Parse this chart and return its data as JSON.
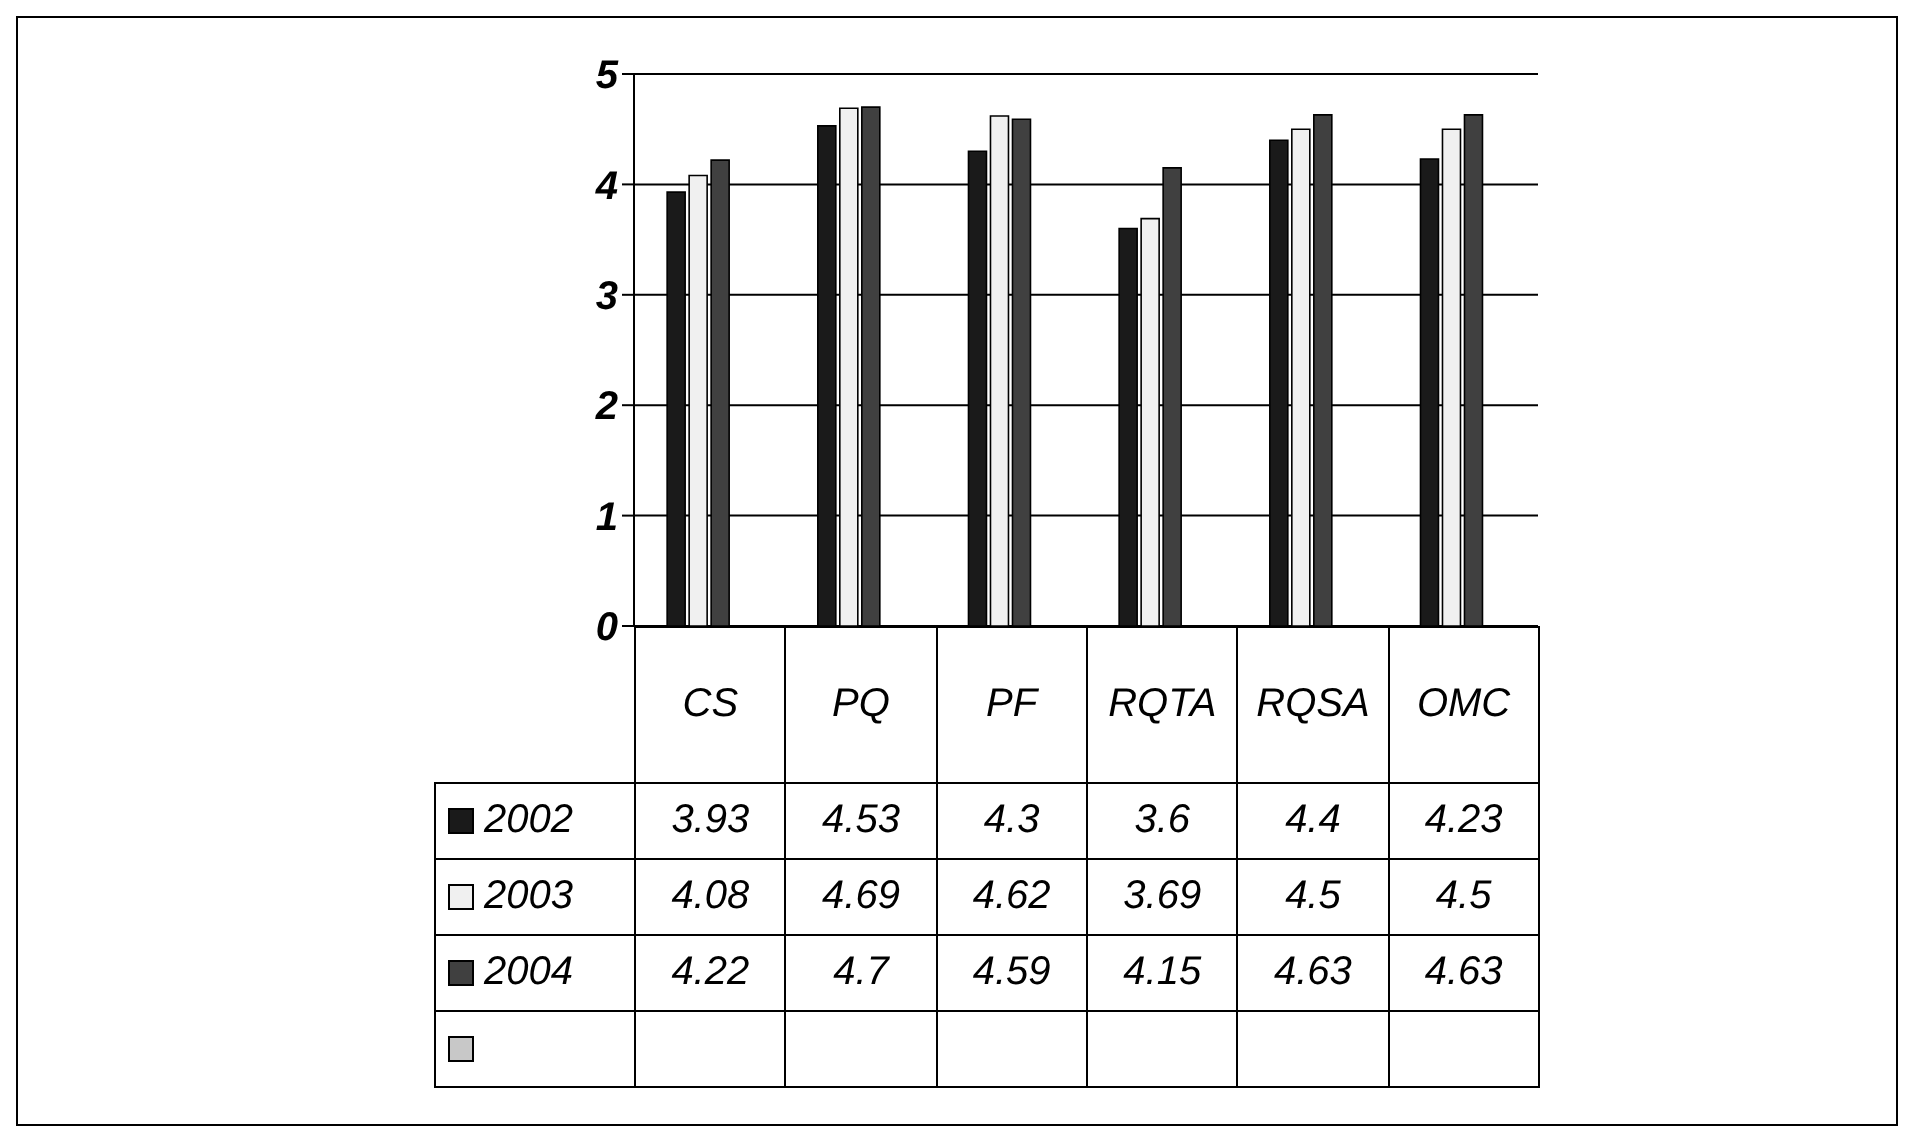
{
  "chart_data": {
    "type": "bar",
    "categories": [
      "CS",
      "PQ",
      "PF",
      "RQTA",
      "RQSA",
      "OMC"
    ],
    "series": [
      {
        "name": "2002",
        "color": "#1a1a1a",
        "values": [
          3.93,
          4.53,
          4.3,
          3.6,
          4.4,
          4.23
        ]
      },
      {
        "name": "2003",
        "color": "#f0f0f0",
        "values": [
          4.08,
          4.69,
          4.62,
          3.69,
          4.5,
          4.5
        ]
      },
      {
        "name": "2004",
        "color": "#404040",
        "values": [
          4.22,
          4.7,
          4.59,
          4.15,
          4.63,
          4.63
        ]
      },
      {
        "color": "#c8c8c8",
        "values": [
          null,
          null,
          null,
          null,
          null,
          null
        ]
      }
    ],
    "ylim": [
      0,
      5
    ],
    "yticks": [
      0,
      1,
      2,
      3,
      4,
      5
    ],
    "grid": "y",
    "legend": "bottom",
    "data_labels": true
  }
}
